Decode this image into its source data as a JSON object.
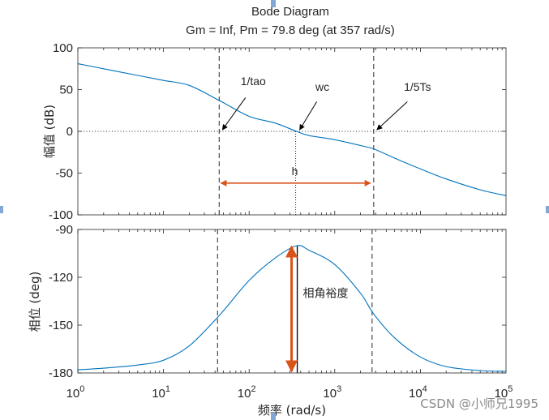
{
  "title": "Bode Diagram",
  "subtitle": "Gm = Inf,  Pm = 79.8 deg (at 357 rad/s)",
  "xlabel": "频率  (rad/s)",
  "watermark": "CSDN @小师兄1995",
  "chart_data": [
    {
      "type": "line",
      "name": "magnitude",
      "ylabel": "幅值 (dB)",
      "xscale": "log",
      "xlim": [
        1,
        100000
      ],
      "ylim": [
        -100,
        100
      ],
      "yticks": [
        100,
        50,
        0,
        -50,
        -100
      ],
      "series": [
        {
          "x": [
            1,
            2,
            5,
            10,
            20,
            44.7,
            100,
            200,
            357,
            500,
            1000,
            2000,
            2850,
            5000,
            10000,
            20000,
            50000,
            100000
          ],
          "y": [
            81,
            75,
            67,
            61,
            55,
            37,
            18,
            10,
            0,
            -5,
            -10,
            -17,
            -21,
            -32,
            -45,
            -57,
            -70,
            -77
          ]
        }
      ],
      "zero_line": 0,
      "vlines": [
        44.7,
        2850
      ],
      "marker_line": 357,
      "annotations": [
        {
          "text": "1/tao",
          "tip_x": 44.7,
          "tip_y": 0
        },
        {
          "text": "wc",
          "tip_x": 357,
          "tip_y": 0
        },
        {
          "text": "1/5Ts",
          "tip_x": 2850,
          "tip_y": 0
        },
        {
          "text": "h",
          "x1": 44.7,
          "x2": 2850,
          "y": -62
        }
      ],
      "arrow_color": "#d95319"
    },
    {
      "type": "line",
      "name": "phase",
      "ylabel": "相位 (deg)",
      "xscale": "log",
      "xlim": [
        1,
        100000
      ],
      "ylim": [
        -180,
        -90
      ],
      "yticks": [
        -90,
        -120,
        -150,
        -180
      ],
      "xticks": [
        1,
        10,
        100,
        1000,
        10000,
        100000
      ],
      "xtick_labels": [
        {
          "base": "10",
          "exp": "0"
        },
        {
          "base": "10",
          "exp": "1"
        },
        {
          "base": "10",
          "exp": "2"
        },
        {
          "base": "10",
          "exp": "3"
        },
        {
          "base": "10",
          "exp": "4"
        },
        {
          "base": "10",
          "exp": "5"
        }
      ],
      "series": [
        {
          "x": [
            1,
            2,
            5,
            10,
            20,
            44.7,
            100,
            200,
            357,
            500,
            1000,
            2000,
            2850,
            5000,
            10000,
            20000,
            50000,
            100000
          ],
          "y": [
            -178,
            -177,
            -175,
            -172,
            -163,
            -144,
            -122,
            -108,
            -100.2,
            -103,
            -112,
            -130,
            -143,
            -158,
            -170,
            -176,
            -178.5,
            -179
          ]
        }
      ],
      "vlines": [
        44.7,
        2850
      ],
      "marker_line": 357,
      "annotations": [
        {
          "text": "相角裕度",
          "x": 357,
          "y_from": -180,
          "y_to": -100.2
        }
      ],
      "arrow_color": "#d95319"
    }
  ]
}
